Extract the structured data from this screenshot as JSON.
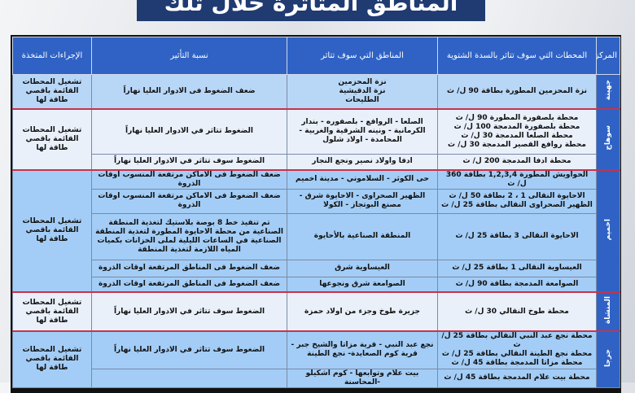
{
  "title": "المناطق المتأثرة خلال تلك الفترة",
  "headers": {
    "center": "المركز",
    "stations": "المحطات التي سوف تتاثر بالسدة الشتوية",
    "areas": "المناطق التي سوف تتاثر",
    "impact": "نسبة التأثير",
    "actions": "الإجراءات المتخذة"
  },
  "action_text": "تشغيل المحطات القائمة باقصي طاقة لها",
  "groups": [
    {
      "center": "جهينة",
      "action": "تشغيل المحطات القائمة باقصي طاقة لها",
      "rows": [
        {
          "stations": "نزة المحزمين المطورة بطاقة 90 ل/ ث",
          "areas": "نزة المحزمين\nنزة الدقيشية\nالطليحات",
          "impact": "ضعف الضغوط فى الادوار العليا نهاراً"
        }
      ]
    },
    {
      "center": "سوهاج",
      "action": "تشغيل المحطات القائمة باقصي طاقة لها",
      "rows": [
        {
          "stations": "محطة بلصفورة المطورة 90 ل/ ث\nمحطة بلصفورة المدمجة 100 ل/ ث\nمحطة الصلعا المدمجة 30 ل/ ث\nمحطة روافع القصير المدمجة 30 ل/ ث",
          "areas": "الصلعا - الروافع - بلصفوره - بندار الكرمانية - ونينه الشرقية والغربية - المحامدة - اولاد شلول",
          "impact": "الضغوط تتاثر في الادوار العليا نهاراً"
        },
        {
          "stations": "محطة ادفا المدمجة 200 ل/ ث",
          "areas": "ادفا واولاد نصير ونجع النجار",
          "impact": "الضغوط سوف تتاثر في الادوار العليا نهاراً"
        }
      ]
    },
    {
      "center": "اخميم",
      "action": "تشغيل المحطات القائمة باقصي طاقة لها",
      "rows": [
        {
          "stations": "الحواويش المطورة 1,2,3,4 بطاقة 360 ل/ ث",
          "areas": "حى الكوثر - السلاموني - مدينة اخميم",
          "impact": "ضعف الضغوط فى الاماكن مرتفعة المنسوب اوقات الذروة"
        },
        {
          "stations": "الاحايوة النقالى 1 ، 2  بطاقة 50 ل/ ث\nالظهير الصحراوى النقالى بطاقة 25 ل/ ث",
          "areas": "الظهير الصحراوى - الاحايوة شرق - مصنع البوتجاز - الكولا",
          "impact": "ضعف الضغوط فى الاماكن مرتفعة المنسوب اوقات الذروة"
        },
        {
          "stations": "الاحايوة النقالى 3 بطاقة 25 ل/ ث",
          "areas": "المنطقة الصناعية بالأحايوة",
          "impact": "تم تنفيذ خط 8 بوصة بلاستيك لتغذية المنطقة الصناعية من محطة الاحايوة المطورة  لتغذية المنطقة الصناعية في الساعات الليلية لملى الخزانات بكميات المياه  اللازمة لتغذية المنطقة"
        },
        {
          "stations": "العيساوية النقالى 1 بطاقة 25 ل/ ث",
          "areas": "العيساوية شرق",
          "impact": "ضعف الضغوط فى المناطق المرتفعة اوقات الذروة"
        },
        {
          "stations": "الصوامعة المدمجة  بطاقة 90 ل/ ث",
          "areas": "الصوامعة شرق ونجوعها",
          "impact": "ضعف الضغوط فى المناطق المرتفعة اوقات الذروة"
        }
      ]
    },
    {
      "center": "المنشاة",
      "action": "تشغيل المحطات القائمة باقصي طاقة لها",
      "rows": [
        {
          "stations": "محطة طوخ النقالي 30 ل/ ث",
          "areas": "جزيرة طوخ وجزء من اولاد حمزة",
          "impact": "الضغوط سوف تتاثر في الادوار العليا نهاراً"
        }
      ]
    },
    {
      "center": "جرجا",
      "action": "تشغيل المحطات القائمة باقصي طاقة لها",
      "rows": [
        {
          "stations": "محطة نجع عبد النبي النقالي بطاقة 25 ل/ ث\nمحطة نجع الطينة النقالي بطاقة 25 ل/ ث\nمحطة مزاتا المدمجة  بطاقة 45 ل/ ث",
          "areas": "نجع عبد النبي - قرية مزاتا والشيخ جبر - قرية كوم الصعايدة- نجع الطينة",
          "impact": "الضغوط سوف تتاثر في الادوار العليا نهاراً"
        },
        {
          "stations": "محطة بيت علام المدمجة بطاقة 45 ل/ ث",
          "areas": "بيت علام وتوابعها - كوم أشكيلو -المحاسنة",
          "impact": ""
        }
      ]
    }
  ]
}
